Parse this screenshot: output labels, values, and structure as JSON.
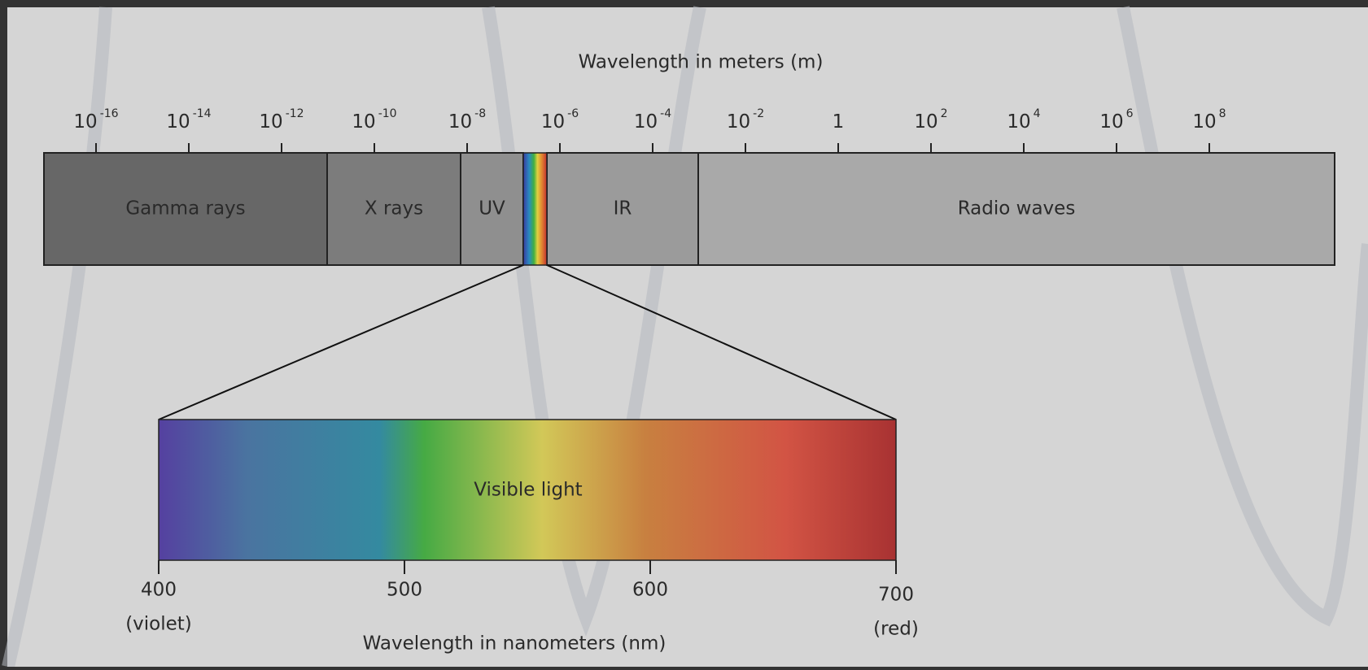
{
  "title": "Wavelength in meters (m)",
  "top_ticks": [
    {
      "base": "10",
      "exp": "-16"
    },
    {
      "base": "10",
      "exp": "-14"
    },
    {
      "base": "10",
      "exp": "-12"
    },
    {
      "base": "10",
      "exp": "-10"
    },
    {
      "base": "10",
      "exp": "-8"
    },
    {
      "base": "10",
      "exp": "-6"
    },
    {
      "base": "10",
      "exp": "-4"
    },
    {
      "base": "10",
      "exp": "-2"
    },
    {
      "base": "1"
    },
    {
      "base": "10",
      "exp": "2"
    },
    {
      "base": "10",
      "exp": "4"
    },
    {
      "base": "10",
      "exp": "6"
    },
    {
      "base": "10",
      "exp": "8"
    }
  ],
  "bands": [
    {
      "label": "Gamma rays",
      "color": "#676767"
    },
    {
      "label": "X rays",
      "color": "#7c7c7c"
    },
    {
      "label": "UV",
      "color": "#8f8f8f"
    },
    {
      "label": "IR",
      "color": "#9b9b9b"
    },
    {
      "label": "Radio waves",
      "color": "#a9a9a9"
    }
  ],
  "visible": {
    "label": "Visible light",
    "axis_title": "Wavelength in nanometers (nm)",
    "ticks": [
      {
        "value": "400",
        "note": "(violet)"
      },
      {
        "value": "500"
      },
      {
        "value": "600"
      },
      {
        "value": "700",
        "note": "(red)"
      }
    ]
  }
}
